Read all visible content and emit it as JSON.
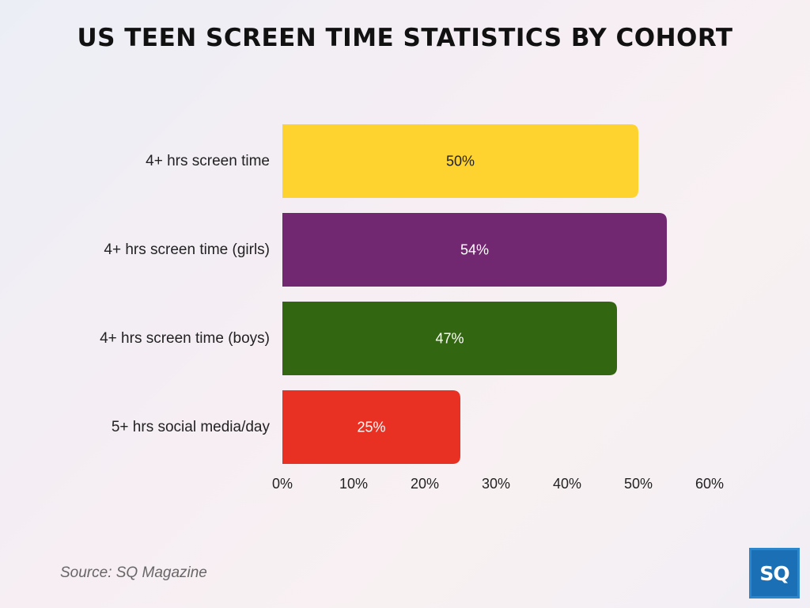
{
  "title": "US TEEN SCREEN TIME STATISTICS BY COHORT",
  "source": "Source: SQ Magazine",
  "logo_text": "SQ",
  "chart_data": {
    "type": "bar",
    "orientation": "horizontal",
    "categories": [
      "4+ hrs screen time",
      "4+ hrs screen time (girls)",
      "4+ hrs screen time (boys)",
      "5+ hrs social media/day"
    ],
    "values": [
      50,
      54,
      47,
      25
    ],
    "data_labels": [
      "50%",
      "54%",
      "47%",
      "25%"
    ],
    "colors": [
      "#fed330",
      "#722870",
      "#336611",
      "#e83023"
    ],
    "label_colors": [
      "#222222",
      "#ffffff",
      "#ffffff",
      "#ffffff"
    ],
    "xlim": [
      0,
      60
    ],
    "xticks": [
      0,
      10,
      20,
      30,
      40,
      50,
      60
    ],
    "xtick_labels": [
      "0%",
      "10%",
      "20%",
      "30%",
      "40%",
      "50%",
      "60%"
    ],
    "grid": false,
    "legend": "none"
  }
}
